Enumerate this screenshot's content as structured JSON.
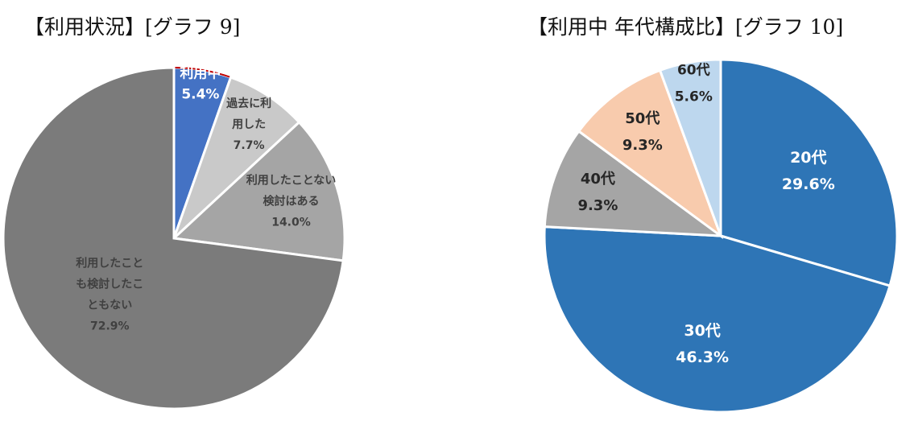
{
  "chart_data": [
    {
      "type": "pie",
      "title": "【利用状況】[グラフ 9]",
      "start_angle_deg": 0,
      "direction": "clockwise",
      "slices": [
        {
          "label_lines": [
            "利用中"
          ],
          "percent_label": "5.4%",
          "value": 5.4,
          "color": "#4472c4",
          "text_color": "#ffffff",
          "outline": "#c00000"
        },
        {
          "label_lines": [
            "過去に利",
            "用した"
          ],
          "percent_label": "7.7%",
          "value": 7.7,
          "color": "#c9c9c9",
          "text_color": "#404040"
        },
        {
          "label_lines": [
            "利用したことない",
            "検討はある"
          ],
          "percent_label": "14.0%",
          "value": 14.0,
          "color": "#a5a5a5",
          "text_color": "#404040"
        },
        {
          "label_lines": [
            "利用したこと",
            "も検討したこ",
            "ともない"
          ],
          "percent_label": "72.9%",
          "value": 72.9,
          "color": "#7b7b7b",
          "text_color": "#404040"
        }
      ]
    },
    {
      "type": "pie",
      "title": "【利用中 年代構成比】[グラフ 10]",
      "start_angle_deg": 0,
      "direction": "clockwise",
      "slices": [
        {
          "label_lines": [
            "20代"
          ],
          "percent_label": "29.6%",
          "value": 29.6,
          "color": "#2e75b6",
          "text_color": "#ffffff"
        },
        {
          "label_lines": [
            "30代"
          ],
          "percent_label": "46.3%",
          "value": 46.3,
          "color": "#2e75b6",
          "text_color": "#ffffff"
        },
        {
          "label_lines": [
            "40代"
          ],
          "percent_label": "9.3%",
          "value": 9.3,
          "color": "#a5a5a5",
          "text_color": "#262626"
        },
        {
          "label_lines": [
            "50代"
          ],
          "percent_label": "9.3%",
          "value": 9.3,
          "color": "#f8cbad",
          "text_color": "#262626"
        },
        {
          "label_lines": [
            "60代"
          ],
          "percent_label": "5.6%",
          "value": 5.6,
          "color": "#bdd7ee",
          "text_color": "#262626"
        }
      ]
    }
  ]
}
